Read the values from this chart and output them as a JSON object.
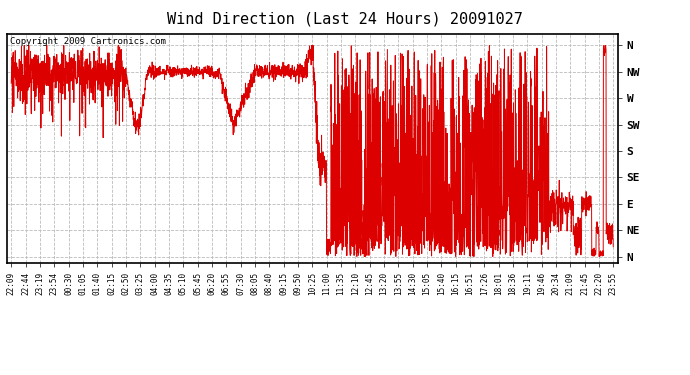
{
  "title": "Wind Direction (Last 24 Hours) 20091027",
  "copyright": "Copyright 2009 Cartronics.com",
  "background_color": "#ffffff",
  "plot_bg_color": "#ffffff",
  "line_color": "#dd0000",
  "grid_color": "#bbbbbb",
  "ytick_labels": [
    "N",
    "NW",
    "W",
    "SW",
    "S",
    "SE",
    "E",
    "NE",
    "N"
  ],
  "ytick_values": [
    360,
    315,
    270,
    225,
    180,
    135,
    90,
    45,
    0
  ],
  "xtick_labels": [
    "22:09",
    "22:44",
    "23:19",
    "23:54",
    "00:30",
    "01:05",
    "01:40",
    "02:15",
    "02:50",
    "03:25",
    "04:00",
    "04:35",
    "05:10",
    "05:45",
    "06:20",
    "06:55",
    "07:30",
    "08:05",
    "08:40",
    "09:15",
    "09:50",
    "10:25",
    "11:00",
    "11:35",
    "12:10",
    "12:45",
    "13:20",
    "13:55",
    "14:30",
    "15:05",
    "15:40",
    "16:15",
    "16:51",
    "17:26",
    "18:01",
    "18:36",
    "19:11",
    "19:46",
    "20:34",
    "21:09",
    "21:45",
    "22:20",
    "23:55"
  ],
  "n_ticks": 43
}
